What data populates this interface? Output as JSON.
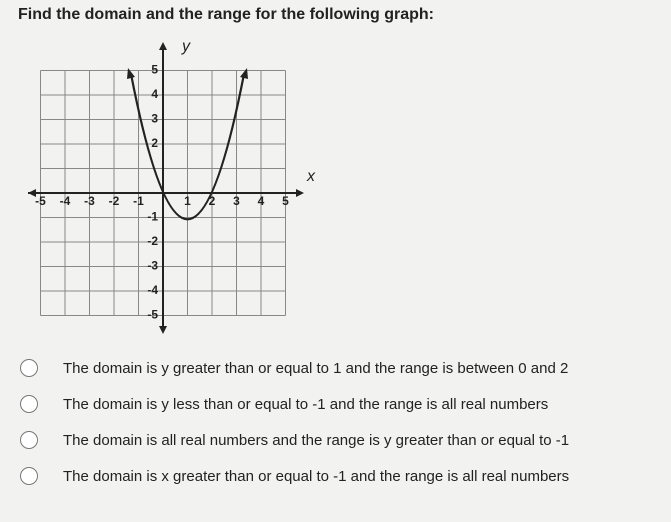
{
  "question": "Find the domain and the range for the following graph:",
  "graph": {
    "x_axis_label": "x",
    "y_axis_label": "y",
    "x_tick_labels": [
      "-5",
      "-4",
      "-3",
      "-2",
      "-1",
      "1",
      "2",
      "3",
      "4",
      "5"
    ],
    "y_tick_labels": [
      "5",
      "4",
      "3",
      "2",
      "-1",
      "-2",
      "-3",
      "-4",
      "-5"
    ]
  },
  "options": [
    "The domain is y greater than or equal to 1 and the range is between 0 and 2",
    "The domain is y less than or equal to -1 and the range is all real numbers",
    "The domain is all real numbers and the range is y greater than or equal to -1",
    "The domain is x greater than or equal to -1 and the range is all real numbers"
  ]
}
